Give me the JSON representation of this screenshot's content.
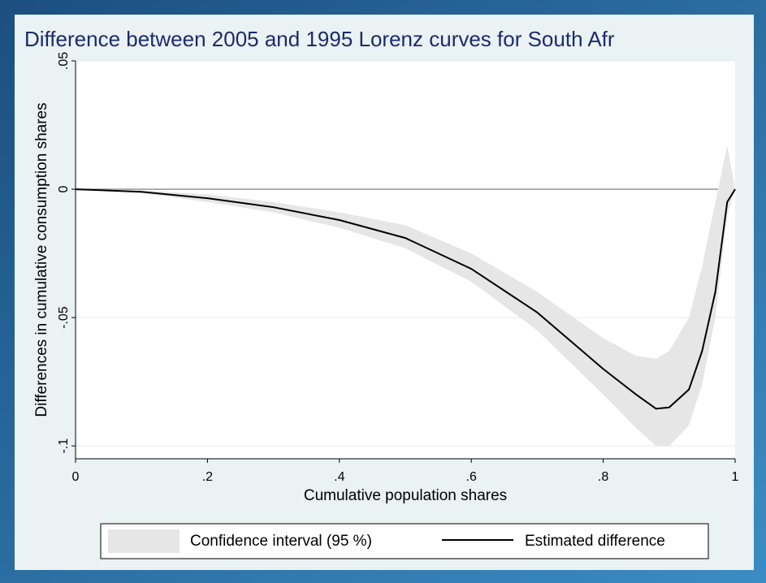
{
  "chart_data": {
    "type": "line",
    "title": "Difference between 2005 and 1995 Lorenz curves for South Afr",
    "x_label": "Cumulative population shares",
    "y_label": "Differences in cumulative consumption shares",
    "x": [
      0,
      0.1,
      0.2,
      0.3,
      0.4,
      0.5,
      0.6,
      0.7,
      0.8,
      0.85,
      0.88,
      0.9,
      0.93,
      0.95,
      0.97,
      0.988,
      1
    ],
    "series": [
      {
        "name": "Confidence interval (95 %)",
        "color": "#e6e6e6",
        "lower": [
          0,
          -0.0015,
          -0.005,
          -0.009,
          -0.015,
          -0.023,
          -0.036,
          -0.055,
          -0.08,
          -0.093,
          -0.1,
          -0.1,
          -0.092,
          -0.076,
          -0.05,
          -0.01,
          0
        ],
        "upper": [
          0,
          -0.0005,
          -0.002,
          -0.005,
          -0.009,
          -0.014,
          -0.025,
          -0.04,
          -0.058,
          -0.065,
          -0.066,
          -0.063,
          -0.05,
          -0.03,
          -0.005,
          0.017,
          0
        ]
      },
      {
        "name": "Estimated difference",
        "color": "#000000",
        "values": [
          0,
          -0.001,
          -0.0035,
          -0.007,
          -0.012,
          -0.019,
          -0.031,
          -0.048,
          -0.07,
          -0.08,
          -0.0855,
          -0.085,
          -0.078,
          -0.063,
          -0.04,
          -0.005,
          0
        ]
      }
    ],
    "xlim": [
      0,
      1
    ],
    "ylim": [
      -0.105,
      0.05
    ],
    "xticks": [
      0,
      {
        "value": 0.2,
        "label": ".2"
      },
      {
        "value": 0.4,
        "label": ".4"
      },
      {
        "value": 0.6,
        "label": ".6"
      },
      {
        "value": 0.8,
        "label": ".8"
      },
      1
    ],
    "yticks": [
      {
        "value": -0.1,
        "label": "-.1"
      },
      {
        "value": -0.05,
        "label": "-.05"
      },
      0,
      {
        "value": 0.05,
        "label": ".05"
      }
    ],
    "grid": true,
    "zero_line": true,
    "legend": "bottom"
  }
}
